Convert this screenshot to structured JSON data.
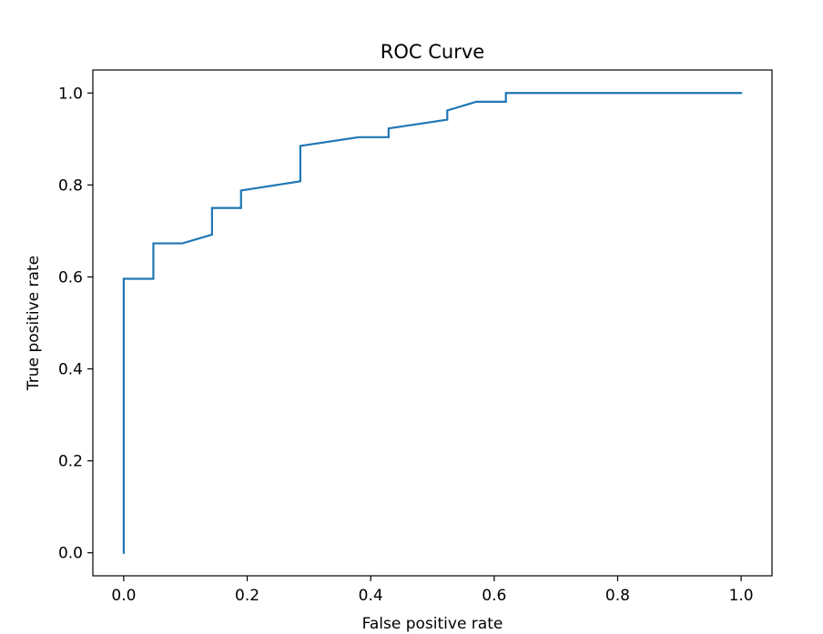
{
  "chart_data": {
    "type": "line",
    "title": "ROC Curve",
    "xlabel": "False positive rate",
    "ylabel": "True positive rate",
    "xlim": [
      -0.05,
      1.05
    ],
    "ylim": [
      -0.05,
      1.05
    ],
    "xticks": [
      0.0,
      0.2,
      0.4,
      0.6,
      0.8,
      1.0
    ],
    "yticks": [
      0.0,
      0.2,
      0.4,
      0.6,
      0.8,
      1.0
    ],
    "xtick_labels": [
      "0.0",
      "0.2",
      "0.4",
      "0.6",
      "0.8",
      "1.0"
    ],
    "ytick_labels": [
      "0.0",
      "0.2",
      "0.4",
      "0.6",
      "0.8",
      "1.0"
    ],
    "grid": false,
    "series": [
      {
        "color": "#1f77b4",
        "x": [
          0.0,
          0.0,
          0.048,
          0.048,
          0.095,
          0.143,
          0.143,
          0.19,
          0.19,
          0.286,
          0.286,
          0.381,
          0.429,
          0.429,
          0.524,
          0.524,
          0.571,
          0.619,
          0.619,
          1.0
        ],
        "y": [
          0.0,
          0.596,
          0.596,
          0.673,
          0.673,
          0.692,
          0.75,
          0.75,
          0.788,
          0.808,
          0.885,
          0.904,
          0.904,
          0.923,
          0.942,
          0.962,
          0.981,
          0.981,
          1.0,
          1.0
        ]
      }
    ]
  }
}
